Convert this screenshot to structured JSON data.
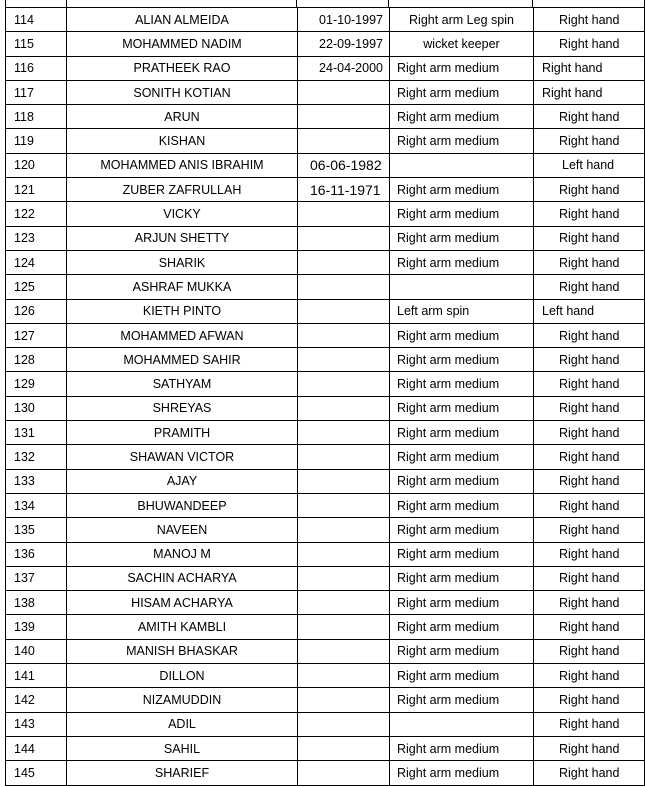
{
  "rows": [
    {
      "no": "114",
      "name": "ALIAN ALMEIDA",
      "dob": "01-10-1997",
      "bowling": "Right arm Leg spin",
      "batting": "Right hand"
    },
    {
      "no": "115",
      "name": "MOHAMMED NADIM",
      "dob": "22-09-1997",
      "bowling": "wicket keeper",
      "batting": "Right hand"
    },
    {
      "no": "116",
      "name": "PRATHEEK RAO",
      "dob": "24-04-2000",
      "bowling": "Right arm medium",
      "batting": "Right hand"
    },
    {
      "no": "117",
      "name": "SONITH KOTIAN",
      "dob": "",
      "bowling": "Right arm medium",
      "batting": "Right hand"
    },
    {
      "no": "118",
      "name": "ARUN",
      "dob": "",
      "bowling": "Right arm medium",
      "batting": "Right hand"
    },
    {
      "no": "119",
      "name": "KISHAN",
      "dob": "",
      "bowling": "Right arm medium",
      "batting": "Right hand"
    },
    {
      "no": "120",
      "name": "MOHAMMED ANIS IBRAHIM",
      "dob": "06-06-1982",
      "bowling": "",
      "batting": "Left hand"
    },
    {
      "no": "121",
      "name": "ZUBER ZAFRULLAH",
      "dob": "16-11-1971",
      "bowling": "Right arm medium",
      "batting": "Right hand"
    },
    {
      "no": "122",
      "name": "VICKY",
      "dob": "",
      "bowling": "Right arm medium",
      "batting": "Right hand"
    },
    {
      "no": "123",
      "name": "ARJUN SHETTY",
      "dob": "",
      "bowling": "Right arm medium",
      "batting": "Right hand"
    },
    {
      "no": "124",
      "name": "SHARIK",
      "dob": "",
      "bowling": "Right arm medium",
      "batting": "Right hand"
    },
    {
      "no": "125",
      "name": "ASHRAF MUKKA",
      "dob": "",
      "bowling": "",
      "batting": "Right hand"
    },
    {
      "no": "126",
      "name": "KIETH PINTO",
      "dob": "",
      "bowling": "Left arm spin",
      "batting": "Left hand"
    },
    {
      "no": "127",
      "name": "MOHAMMED AFWAN",
      "dob": "",
      "bowling": "Right arm medium",
      "batting": "Right hand"
    },
    {
      "no": "128",
      "name": "MOHAMMED SAHIR",
      "dob": "",
      "bowling": "Right arm medium",
      "batting": "Right hand"
    },
    {
      "no": "129",
      "name": "SATHYAM",
      "dob": "",
      "bowling": "Right arm medium",
      "batting": "Right hand"
    },
    {
      "no": "130",
      "name": "SHREYAS",
      "dob": "",
      "bowling": "Right arm medium",
      "batting": "Right hand"
    },
    {
      "no": "131",
      "name": "PRAMITH",
      "dob": "",
      "bowling": "Right arm medium",
      "batting": "Right hand"
    },
    {
      "no": "132",
      "name": "SHAWAN VICTOR",
      "dob": "",
      "bowling": "Right arm medium",
      "batting": "Right hand"
    },
    {
      "no": "133",
      "name": "AJAY",
      "dob": "",
      "bowling": "Right arm medium",
      "batting": "Right hand"
    },
    {
      "no": "134",
      "name": "BHUWANDEEP",
      "dob": "",
      "bowling": "Right arm medium",
      "batting": "Right hand"
    },
    {
      "no": "135",
      "name": "NAVEEN",
      "dob": "",
      "bowling": "Right arm medium",
      "batting": "Right hand"
    },
    {
      "no": "136",
      "name": "MANOJ M",
      "dob": "",
      "bowling": "Right arm medium",
      "batting": "Right hand"
    },
    {
      "no": "137",
      "name": "SACHIN ACHARYA",
      "dob": "",
      "bowling": "Right arm medium",
      "batting": "Right hand"
    },
    {
      "no": "138",
      "name": "HISAM ACHARYA",
      "dob": "",
      "bowling": "Right arm medium",
      "batting": "Right hand"
    },
    {
      "no": "139",
      "name": "AMITH KAMBLI",
      "dob": "",
      "bowling": "Right arm medium",
      "batting": "Right hand"
    },
    {
      "no": "140",
      "name": "MANISH BHASKAR",
      "dob": "",
      "bowling": "Right arm medium",
      "batting": "Right hand"
    },
    {
      "no": "141",
      "name": "DILLON",
      "dob": "",
      "bowling": "Right arm medium",
      "batting": "Right hand"
    },
    {
      "no": "142",
      "name": "NIZAMUDDIN",
      "dob": "",
      "bowling": "Right arm medium",
      "batting": "Right hand"
    },
    {
      "no": "143",
      "name": "ADIL",
      "dob": "",
      "bowling": "",
      "batting": "Right hand"
    },
    {
      "no": "144",
      "name": "SAHIL",
      "dob": "",
      "bowling": "Right arm medium",
      "batting": "Right hand"
    },
    {
      "no": "145",
      "name": "SHARIEF",
      "dob": "",
      "bowling": "Right arm medium",
      "batting": "Right hand"
    }
  ]
}
